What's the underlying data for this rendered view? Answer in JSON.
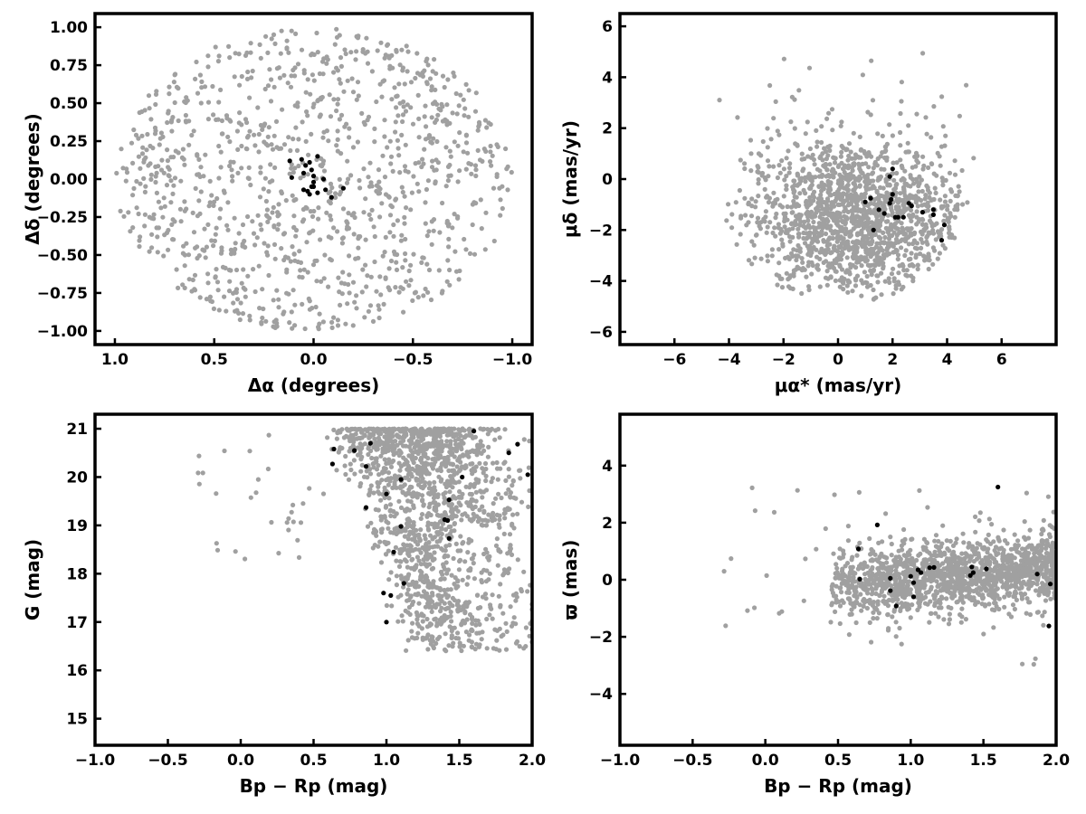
{
  "chart_data": [
    {
      "type": "scatter",
      "xlabel": "Δα (degrees)",
      "ylabel": "Δδ (degrees)",
      "xlim": [
        1.1,
        -1.1
      ],
      "ylim": [
        -1.09,
        1.09
      ],
      "x_inverted": true,
      "xticks": [
        1.0,
        0.5,
        0.0,
        -0.5,
        -1.0
      ],
      "xtick_labels": [
        "1.0",
        "0.5",
        "0.0",
        "−0.5",
        "−1.0"
      ],
      "yticks": [
        -1.0,
        -0.75,
        -0.5,
        -0.25,
        0.0,
        0.25,
        0.5,
        0.75,
        1.0
      ],
      "ytick_labels": [
        "−1.00",
        "−0.75",
        "−0.50",
        "−0.25",
        "0.00",
        "0.25",
        "0.50",
        "0.75",
        "1.00"
      ],
      "grid": false,
      "background": {
        "color": "#a0a0a0",
        "distribution": "uniform-disk",
        "count": 1100,
        "center": [
          0.0,
          0.0
        ],
        "radius": 1.0
      },
      "series": [
        {
          "color": "#000000",
          "points": [
            [
              0.12,
              0.12
            ],
            [
              0.06,
              0.13
            ],
            [
              0.04,
              0.09
            ],
            [
              0.02,
              0.11
            ],
            [
              0.01,
              0.06
            ],
            [
              0.05,
              0.04
            ],
            [
              0.0,
              0.02
            ],
            [
              -0.02,
              0.15
            ],
            [
              0.11,
              0.01
            ],
            [
              -0.05,
              0.0
            ],
            [
              0.0,
              -0.02
            ],
            [
              0.01,
              -0.05
            ],
            [
              -0.06,
              -0.07
            ],
            [
              0.05,
              -0.07
            ],
            [
              -0.02,
              -0.09
            ],
            [
              0.02,
              -0.1
            ],
            [
              -0.09,
              -0.12
            ],
            [
              -0.15,
              -0.06
            ],
            [
              0.03,
              -0.08
            ],
            [
              0.0,
              -0.05
            ]
          ]
        }
      ]
    },
    {
      "type": "scatter",
      "xlabel": "μα* (mas/yr)",
      "ylabel": "μδ (mas/yr)",
      "xlim": [
        -8.0,
        8.0
      ],
      "ylim": [
        -6.5,
        6.5
      ],
      "xticks": [
        -6,
        -4,
        -2,
        0,
        2,
        4,
        6
      ],
      "xtick_labels": [
        "−6",
        "−4",
        "−2",
        "0",
        "2",
        "4",
        "6"
      ],
      "yticks": [
        -6,
        -4,
        -2,
        0,
        2,
        4,
        6
      ],
      "ytick_labels": [
        "−6",
        "−4",
        "−2",
        "0",
        "2",
        "4",
        "6"
      ],
      "grid": false,
      "background": {
        "color": "#a0a0a0",
        "distribution": "cloud",
        "count": 1500,
        "center": [
          0.6,
          -1.6
        ],
        "spread": [
          2.0,
          1.6
        ]
      },
      "series": [
        {
          "color": "#000000",
          "points": [
            [
              2.0,
              0.4
            ],
            [
              1.9,
              0.1
            ],
            [
              2.0,
              -0.6
            ],
            [
              1.2,
              -0.75
            ],
            [
              1.95,
              -0.8
            ],
            [
              1.0,
              -0.9
            ],
            [
              1.9,
              -0.95
            ],
            [
              2.6,
              -0.95
            ],
            [
              2.7,
              -1.05
            ],
            [
              1.5,
              -1.2
            ],
            [
              1.7,
              -1.35
            ],
            [
              3.1,
              -1.3
            ],
            [
              3.5,
              -1.2
            ],
            [
              2.2,
              -1.5
            ],
            [
              2.4,
              -1.5
            ],
            [
              3.5,
              -1.4
            ],
            [
              1.3,
              -2.0
            ],
            [
              3.9,
              -1.8
            ],
            [
              3.8,
              -2.4
            ],
            [
              2.1,
              -1.5
            ]
          ]
        }
      ]
    },
    {
      "type": "scatter",
      "xlabel": "Bp − Rp (mag)",
      "ylabel": "G (mag)",
      "xlim": [
        -1.0,
        2.0
      ],
      "ylim": [
        14.45,
        21.3
      ],
      "xticks": [
        -1.0,
        -0.5,
        0.0,
        0.5,
        1.0,
        1.5,
        2.0
      ],
      "xtick_labels": [
        "−1.0",
        "−0.5",
        "0.0",
        "0.5",
        "1.0",
        "1.5",
        "2.0"
      ],
      "yticks": [
        15,
        16,
        17,
        18,
        19,
        20,
        21
      ],
      "ytick_labels": [
        "15",
        "16",
        "17",
        "18",
        "19",
        "20",
        "21"
      ],
      "grid": false,
      "background": {
        "color": "#a0a0a0",
        "distribution": "color-magnitude",
        "count": 1500
      },
      "series": [
        {
          "color": "#000000",
          "points": [
            [
              0.64,
              20.58
            ],
            [
              0.78,
              20.55
            ],
            [
              0.89,
              20.7
            ],
            [
              0.63,
              20.27
            ],
            [
              0.86,
              20.22
            ],
            [
              1.6,
              20.95
            ],
            [
              1.9,
              20.68
            ],
            [
              1.84,
              20.5
            ],
            [
              1.52,
              20.0
            ],
            [
              1.97,
              20.05
            ],
            [
              1.1,
              19.95
            ],
            [
              1.0,
              19.65
            ],
            [
              1.43,
              19.53
            ],
            [
              0.86,
              19.37
            ],
            [
              1.1,
              18.98
            ],
            [
              1.4,
              19.12
            ],
            [
              1.42,
              19.1
            ],
            [
              1.43,
              18.73
            ],
            [
              1.05,
              18.45
            ],
            [
              1.12,
              17.8
            ],
            [
              0.98,
              17.6
            ],
            [
              1.03,
              17.55
            ],
            [
              1.0,
              17.0
            ]
          ]
        }
      ]
    },
    {
      "type": "scatter",
      "xlabel": "Bp − Rp (mag)",
      "ylabel": "ϖ (mas)",
      "xlim": [
        -1.0,
        2.0
      ],
      "ylim": [
        -5.8,
        5.8
      ],
      "xticks": [
        -1.0,
        -0.5,
        0.0,
        0.5,
        1.0,
        1.5,
        2.0
      ],
      "xtick_labels": [
        "−1.0",
        "−0.5",
        "0.0",
        "0.5",
        "1.0",
        "1.5",
        "2.0"
      ],
      "yticks": [
        -4,
        -2,
        0,
        2,
        4
      ],
      "ytick_labels": [
        "−4",
        "−2",
        "0",
        "2",
        "4"
      ],
      "grid": false,
      "background": {
        "color": "#a0a0a0",
        "distribution": "parallax-color",
        "count": 1500
      },
      "series": [
        {
          "color": "#000000",
          "points": [
            [
              0.64,
              1.08
            ],
            [
              0.77,
              1.92
            ],
            [
              1.6,
              3.25
            ],
            [
              0.65,
              0.02
            ],
            [
              0.86,
              0.05
            ],
            [
              0.86,
              -0.38
            ],
            [
              0.9,
              -0.92
            ],
            [
              1.0,
              0.12
            ],
            [
              1.02,
              -0.1
            ],
            [
              1.02,
              -0.6
            ],
            [
              1.05,
              0.35
            ],
            [
              1.07,
              0.25
            ],
            [
              1.13,
              0.42
            ],
            [
              1.16,
              0.43
            ],
            [
              1.42,
              0.45
            ],
            [
              1.41,
              0.15
            ],
            [
              1.43,
              0.25
            ],
            [
              1.52,
              0.38
            ],
            [
              1.87,
              0.2
            ],
            [
              1.96,
              -0.15
            ],
            [
              1.95,
              -1.62
            ]
          ]
        }
      ]
    }
  ]
}
